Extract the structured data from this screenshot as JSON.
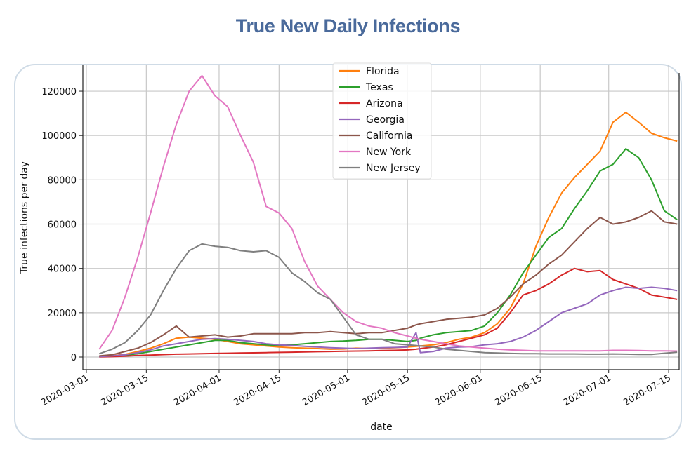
{
  "title": "True New Daily Infections",
  "chart_data": {
    "type": "line",
    "title": "True New Daily Infections",
    "xlabel": "date",
    "ylabel": "True infections per day",
    "xlim": [
      "2020-02-28",
      "2020-07-18"
    ],
    "ylim": [
      -6000,
      132000
    ],
    "grid": true,
    "legend_position": "top-center",
    "x_ticks": [
      "2020-03-01",
      "2020-03-15",
      "2020-04-01",
      "2020-04-15",
      "2020-05-01",
      "2020-05-15",
      "2020-06-01",
      "2020-06-15",
      "2020-07-01",
      "2020-07-15"
    ],
    "y_ticks": [
      0,
      20000,
      40000,
      60000,
      80000,
      100000,
      120000
    ],
    "y_tick_labels": [
      "0",
      "20000",
      "40000",
      "60000",
      "80000",
      "100000",
      "120000"
    ],
    "dates": [
      "2020-03-04",
      "2020-03-07",
      "2020-03-10",
      "2020-03-13",
      "2020-03-16",
      "2020-03-19",
      "2020-03-22",
      "2020-03-25",
      "2020-03-28",
      "2020-03-31",
      "2020-04-03",
      "2020-04-06",
      "2020-04-09",
      "2020-04-12",
      "2020-04-15",
      "2020-04-18",
      "2020-04-21",
      "2020-04-24",
      "2020-04-27",
      "2020-04-30",
      "2020-05-03",
      "2020-05-06",
      "2020-05-09",
      "2020-05-12",
      "2020-05-15",
      "2020-05-17",
      "2020-05-18",
      "2020-05-21",
      "2020-05-24",
      "2020-05-27",
      "2020-05-30",
      "2020-06-02",
      "2020-06-05",
      "2020-06-08",
      "2020-06-11",
      "2020-06-14",
      "2020-06-17",
      "2020-06-20",
      "2020-06-23",
      "2020-06-26",
      "2020-06-29",
      "2020-07-02",
      "2020-07-05",
      "2020-07-08",
      "2020-07-11",
      "2020-07-14",
      "2020-07-17"
    ],
    "series": [
      {
        "name": "Florida",
        "color": "#ff7f0e",
        "values": [
          300,
          600,
          1200,
          2500,
          4000,
          6000,
          8500,
          9000,
          8500,
          8000,
          7000,
          6000,
          5500,
          5000,
          4500,
          4200,
          4000,
          3800,
          3500,
          3600,
          4000,
          3800,
          4000,
          4200,
          4500,
          4800,
          5000,
          5500,
          6500,
          8000,
          9000,
          11000,
          15000,
          22000,
          33000,
          50000,
          63000,
          74000,
          81000,
          87000,
          93000,
          106000,
          110500,
          106000,
          101000,
          99000,
          97500
        ]
      },
      {
        "name": "Texas",
        "color": "#2ca02c",
        "values": [
          200,
          400,
          800,
          1500,
          2500,
          3500,
          4500,
          5500,
          6500,
          7500,
          7500,
          6500,
          6000,
          5500,
          5200,
          5500,
          6000,
          6500,
          7000,
          7200,
          7500,
          8000,
          8000,
          7500,
          7000,
          7500,
          8500,
          10000,
          11000,
          11500,
          12000,
          14000,
          20000,
          28000,
          38000,
          46000,
          54000,
          58000,
          67000,
          75000,
          84000,
          87000,
          94000,
          90000,
          80000,
          66000,
          62000
        ]
      },
      {
        "name": "Arizona",
        "color": "#d62728",
        "values": [
          100,
          200,
          400,
          700,
          900,
          1100,
          1300,
          1400,
          1500,
          1600,
          1700,
          1800,
          1900,
          2000,
          2100,
          2200,
          2300,
          2400,
          2500,
          2600,
          2700,
          2800,
          2900,
          3000,
          3200,
          3500,
          3800,
          4500,
          5500,
          7000,
          8500,
          10000,
          13000,
          20000,
          28000,
          30000,
          33000,
          37000,
          40000,
          38500,
          39000,
          35000,
          33000,
          31000,
          28000,
          27000,
          26000
        ]
      },
      {
        "name": "Georgia",
        "color": "#9467bd",
        "values": [
          200,
          500,
          1000,
          2000,
          3200,
          5000,
          6000,
          7000,
          8000,
          8300,
          8000,
          7500,
          7000,
          6000,
          5500,
          5200,
          4800,
          4500,
          4200,
          4000,
          3800,
          4000,
          4200,
          4300,
          4500,
          11000,
          2000,
          2500,
          4000,
          4500,
          4700,
          5500,
          6000,
          7000,
          9000,
          12000,
          16000,
          20000,
          22000,
          24000,
          28000,
          30000,
          31500,
          31000,
          31500,
          31000,
          30000
        ]
      },
      {
        "name": "California",
        "color": "#8c564b",
        "values": [
          500,
          1000,
          2500,
          4000,
          6500,
          10000,
          14000,
          9000,
          9500,
          10000,
          9000,
          9500,
          10500,
          10500,
          10500,
          10500,
          11000,
          11000,
          11500,
          11000,
          10500,
          11000,
          11000,
          12000,
          13000,
          14500,
          15000,
          16000,
          17000,
          17500,
          18000,
          19000,
          22000,
          27000,
          33000,
          37000,
          42000,
          46000,
          52000,
          58000,
          63000,
          60000,
          61000,
          63000,
          66000,
          61000,
          60000
        ]
      },
      {
        "name": "New York",
        "color": "#e377c2",
        "values": [
          3500,
          12000,
          27000,
          45000,
          65000,
          86000,
          105000,
          120000,
          127000,
          118000,
          113000,
          100000,
          88000,
          68000,
          65000,
          58000,
          43000,
          32000,
          26000,
          20000,
          16000,
          14000,
          13000,
          11000,
          9500,
          8500,
          8000,
          7000,
          6000,
          5000,
          4500,
          4000,
          3500,
          3200,
          3000,
          2800,
          2800,
          2800,
          2800,
          2800,
          2800,
          3000,
          3000,
          2900,
          2800,
          2800,
          2700
        ]
      },
      {
        "name": "New Jersey",
        "color": "#7f7f7f",
        "values": [
          1500,
          3500,
          6500,
          12000,
          19000,
          30000,
          40000,
          48000,
          51000,
          50000,
          49500,
          48000,
          47500,
          48000,
          45000,
          38000,
          34000,
          29000,
          26000,
          18000,
          10000,
          8000,
          8000,
          6000,
          5500,
          5200,
          5000,
          4500,
          3500,
          3000,
          2500,
          2000,
          1800,
          1600,
          1500,
          1500,
          1400,
          1400,
          1400,
          1300,
          1300,
          1400,
          1300,
          1200,
          1200,
          1700,
          2200
        ]
      }
    ]
  }
}
